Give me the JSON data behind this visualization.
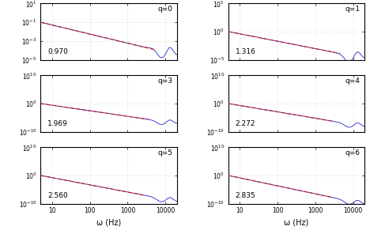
{
  "panels": [
    {
      "q": 0,
      "slope": 0.97,
      "ymin": -5,
      "ymax": 1,
      "yticks": [
        1,
        -1,
        -3,
        -5
      ],
      "col": 0,
      "row": 0,
      "start_log": -1.0,
      "fit_end_log": 3.7
    },
    {
      "q": 1,
      "slope": 1.316,
      "ymin": -5,
      "ymax": 5,
      "yticks": [
        5,
        0,
        -5
      ],
      "col": 1,
      "row": 0,
      "start_log": 0.0,
      "fit_end_log": 3.65
    },
    {
      "q": 3,
      "slope": 1.969,
      "ymin": -10,
      "ymax": 10,
      "yticks": [
        10,
        0,
        -10
      ],
      "col": 0,
      "row": 1,
      "start_log": 0.0,
      "fit_end_log": 3.55
    },
    {
      "q": 4,
      "slope": 2.272,
      "ymin": -10,
      "ymax": 10,
      "yticks": [
        10,
        0,
        -10
      ],
      "col": 1,
      "row": 1,
      "start_log": 0.0,
      "fit_end_log": 3.5
    },
    {
      "q": 5,
      "slope": 2.56,
      "ymin": -10,
      "ymax": 10,
      "yticks": [
        10,
        0,
        -10
      ],
      "col": 0,
      "row": 2,
      "start_log": 0.0,
      "fit_end_log": 3.45
    },
    {
      "q": 6,
      "slope": 2.835,
      "ymin": -10,
      "ymax": 10,
      "yticks": [
        10,
        0,
        -10
      ],
      "col": 1,
      "row": 2,
      "start_log": 0.0,
      "fit_end_log": 3.4
    }
  ],
  "xmin": 5,
  "xmax": 20000,
  "omega_start": 5,
  "line_color": "#2222cc",
  "fit_color": "#cc2222",
  "xlabel": "ω (Hz)",
  "grid_color": "#aaaaaa",
  "background": "#ffffff"
}
